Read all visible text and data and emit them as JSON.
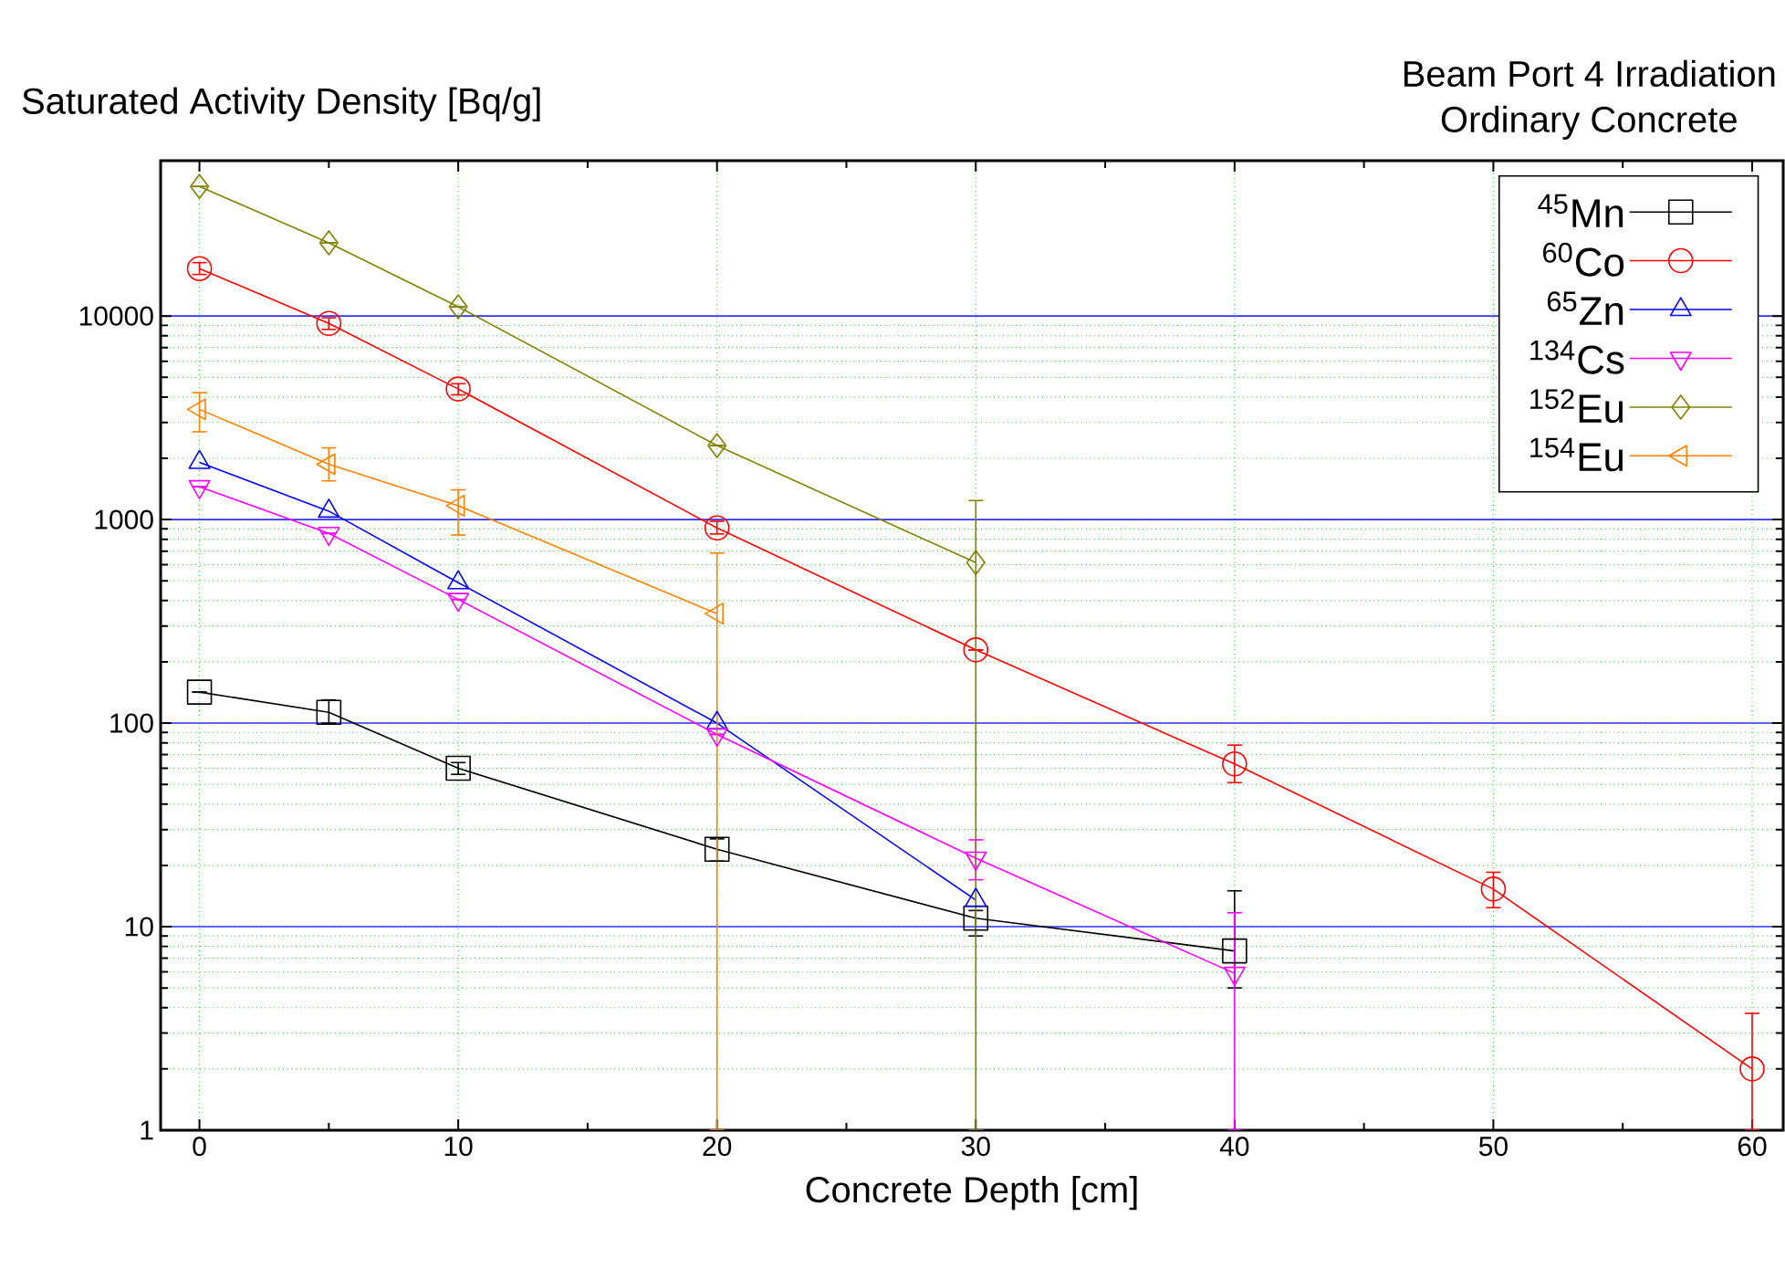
{
  "chart_data": {
    "type": "line",
    "title": "Beam Port 4 Irradiation",
    "subtitle": "Ordinary Concrete",
    "xlabel": "Concrete Depth [cm]",
    "ylabel": "Saturated Activity Density [Bq/g]",
    "log": "y",
    "grid": true,
    "legend": "top right",
    "xlim": [
      -1.5,
      61.2
    ],
    "ylim": [
      1,
      58000
    ],
    "xticks": [
      0,
      10,
      20,
      30,
      40,
      50,
      60
    ],
    "yticks": [
      1,
      10,
      100,
      1000,
      10000
    ],
    "series": [
      {
        "name": "$^{45}$Mn",
        "color": "#000000",
        "marker": "square",
        "x": [
          0,
          5,
          10,
          20,
          30,
          40
        ],
        "values": [
          142,
          113,
          60,
          24,
          11,
          7.6
        ],
        "errors": [
          null,
          [
            100,
            130
          ],
          [
            56,
            64
          ],
          [
            21,
            27
          ],
          [
            9,
            12
          ],
          [
            5,
            15
          ]
        ]
      },
      {
        "name": "$^{60}$Co",
        "color": "#ff0000",
        "marker": "circle",
        "x": [
          0,
          5,
          10,
          20,
          30,
          40,
          50,
          60
        ],
        "values": [
          17100,
          9200,
          4380,
          910,
          229,
          63,
          15.3,
          2
        ],
        "errors": [
          [
            16000,
            18300
          ],
          [
            8600,
            9800
          ],
          [
            4100,
            4650
          ],
          [
            850,
            980
          ],
          null,
          [
            51,
            78
          ],
          [
            12.4,
            18.5
          ],
          [
            1,
            3.75
          ]
        ]
      },
      {
        "name": "$^{65}$Zn",
        "color": "#0000ff",
        "marker": "triangle",
        "x": [
          0,
          5,
          10,
          20,
          30
        ],
        "values": [
          1910,
          1100,
          490,
          100,
          13.5
        ]
      },
      {
        "name": "$^{134}$Cs",
        "color": "#ff00ff",
        "marker": "triangle-down",
        "x": [
          0,
          5,
          10,
          20,
          30,
          40
        ],
        "values": [
          1450,
          855,
          405,
          88,
          21.7,
          5.9
        ],
        "errors": [
          null,
          null,
          null,
          null,
          [
            17,
            26.7
          ],
          [
            1,
            11.7
          ]
        ]
      },
      {
        "name": "$^{152}$Eu",
        "color": "#808000",
        "marker": "diamond",
        "x": [
          0,
          5,
          10,
          20,
          30
        ],
        "values": [
          43300,
          22900,
          11100,
          2310,
          615
        ],
        "errors": [
          null,
          null,
          null,
          null,
          [
            1,
            1240
          ]
        ]
      },
      {
        "name": "$^{154}$Eu",
        "color": "#ff8000",
        "marker": "triangle-left",
        "x": [
          0,
          5,
          10,
          20
        ],
        "values": [
          3480,
          1870,
          1170,
          345
        ],
        "errors": [
          [
            2700,
            4200
          ],
          [
            1550,
            2250
          ],
          [
            840,
            1400
          ],
          [
            1,
            685
          ]
        ]
      }
    ]
  }
}
